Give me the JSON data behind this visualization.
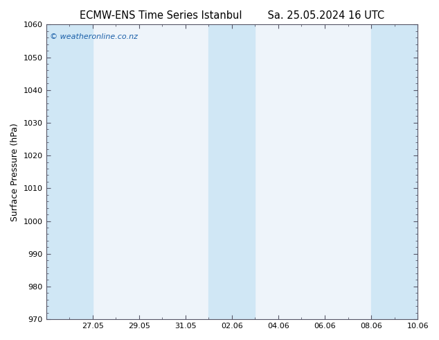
{
  "title_left": "ECMW-ENS Time Series Istanbul",
  "title_right": "Sa. 25.05.2024 16 UTC",
  "ylabel": "Surface Pressure (hPa)",
  "ylim": [
    970,
    1060
  ],
  "yticks": [
    970,
    980,
    990,
    1000,
    1010,
    1020,
    1030,
    1040,
    1050,
    1060
  ],
  "bg_color": "#ffffff",
  "plot_bg_color": "#eef4fa",
  "band_color": "#d0e7f5",
  "watermark": "© weatheronline.co.nz",
  "watermark_color": "#1a5fa8",
  "title_color": "#000000",
  "axis_color": "#000000",
  "spine_color": "#555566",
  "x_end_days": 16,
  "xtick_labels": [
    "27.05",
    "29.05",
    "31.05",
    "02.06",
    "04.06",
    "06.06",
    "08.06",
    "10.06"
  ],
  "xtick_positions_days": [
    2,
    4,
    6,
    8,
    10,
    12,
    14,
    16
  ],
  "bands": [
    {
      "start": 0,
      "end": 2
    },
    {
      "start": 7,
      "end": 9
    },
    {
      "start": 14,
      "end": 16
    }
  ],
  "title_fontsize": 10.5,
  "ylabel_fontsize": 9,
  "tick_fontsize": 8,
  "watermark_fontsize": 8
}
